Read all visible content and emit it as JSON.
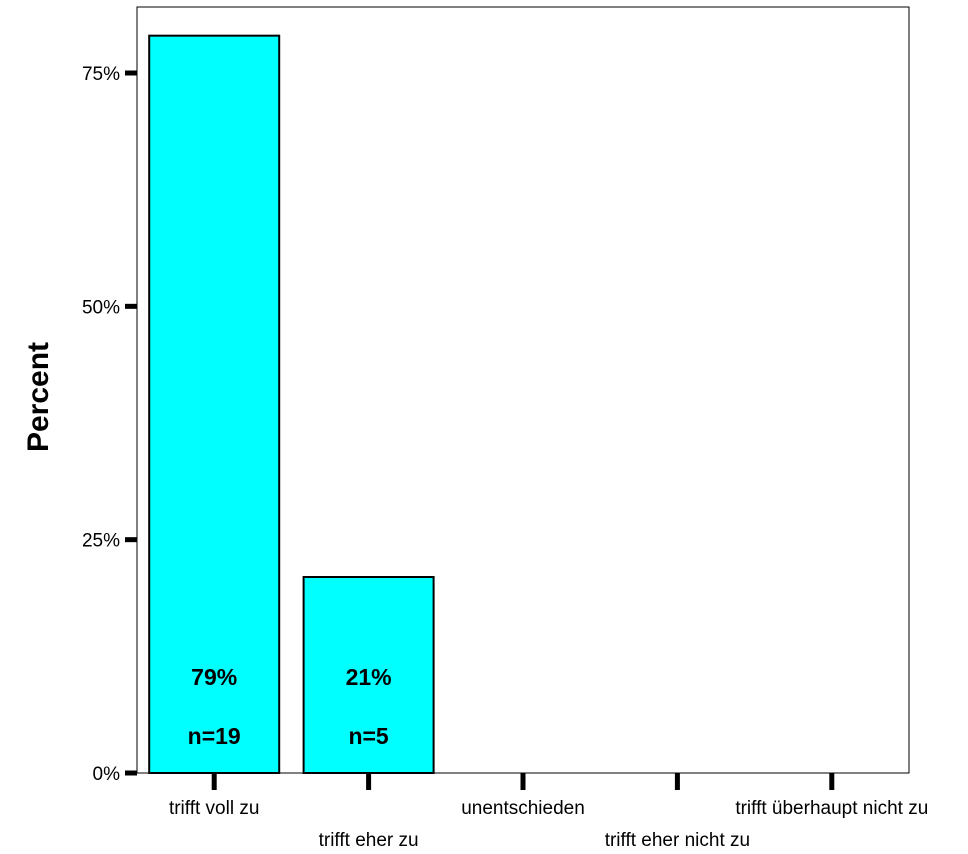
{
  "chart_data": {
    "type": "bar",
    "ylabel": "Percent",
    "xlabel": "",
    "ylim": [
      0,
      82
    ],
    "yticks": [
      0,
      25,
      50,
      75
    ],
    "ytick_labels": [
      "0%",
      "25%",
      "50%",
      "75%"
    ],
    "categories": [
      "trifft voll zu",
      "trifft eher zu",
      "unentschieden",
      "trifft eher nicht zu",
      "trifft überhaupt nicht zu"
    ],
    "values": [
      79,
      21,
      0,
      0,
      0
    ],
    "percent_labels": [
      "79%",
      "21%",
      "",
      "",
      ""
    ],
    "count_labels": [
      "n=19",
      "n=5",
      "",
      "",
      ""
    ],
    "bar_color": "#00ffff",
    "grid": false,
    "legend": false
  }
}
